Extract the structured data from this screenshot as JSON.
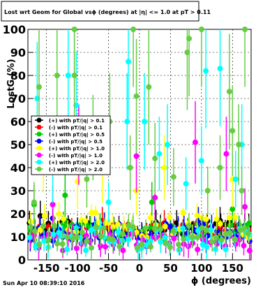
{
  "chart_data": {
    "type": "scatter",
    "title": "Lost wrt Geom for Global vsϕ (degrees) at |η| <= 1.0 at pT > 0.11",
    "xlabel": "ϕ (degrees)",
    "ylabel": "LostG (%)",
    "xlim": [
      -180,
      180
    ],
    "ylim": [
      0,
      100
    ],
    "xticks": [
      -150,
      -100,
      -50,
      0,
      50,
      100,
      150
    ],
    "yticks": [
      0,
      10,
      20,
      30,
      40,
      50,
      60,
      70,
      80,
      90,
      100
    ],
    "grid": true,
    "legend_position": "upper-left",
    "series": [
      {
        "name": "(+) with pT/|q| > 0.1",
        "color": "#000000",
        "base": 14,
        "spread": 3,
        "outliers": [
          [
            -160,
            19
          ],
          [
            130,
            17
          ],
          [
            60,
            16
          ]
        ]
      },
      {
        "name": "(-) with pT/|q| > 0.1",
        "color": "#ff0000",
        "base": 13,
        "spread": 3,
        "outliers": [
          [
            -60,
            17
          ],
          [
            40,
            16
          ]
        ]
      },
      {
        "name": "(+) with pT/|q| > 0.5",
        "color": "#00cc00",
        "base": 12,
        "spread": 4,
        "outliers": [
          [
            -170,
            24
          ],
          [
            -120,
            28
          ],
          [
            20,
            25
          ],
          [
            150,
            22
          ]
        ]
      },
      {
        "name": "(-) with pT/|q| > 0.5",
        "color": "#0000ff",
        "base": 12,
        "spread": 4,
        "outliers": [
          [
            -140,
            18
          ],
          [
            95,
            17
          ]
        ]
      },
      {
        "name": "(+) with pT/|q| > 1.0",
        "color": "#ffff00",
        "base": 15,
        "spread": 6,
        "outliers": [
          [
            -155,
            45
          ],
          [
            -100,
            34
          ],
          [
            -5,
            30
          ],
          [
            40,
            40
          ],
          [
            150,
            35
          ],
          [
            -60,
            38
          ],
          [
            110,
            30
          ]
        ]
      },
      {
        "name": "(-) with pT/|q| > 1.0",
        "color": "#ff00ff",
        "base": 8,
        "spread": 4,
        "outliers": [
          [
            -98,
            50
          ],
          [
            90,
            51
          ],
          [
            -5,
            45
          ],
          [
            140,
            46
          ],
          [
            25,
            27
          ],
          [
            -140,
            24
          ],
          [
            170,
            23
          ]
        ]
      },
      {
        "name": "(+) with pT/|q| > 2.0",
        "color": "#00ffff",
        "base": 9,
        "spread": 5,
        "outliers": [
          [
            -165,
            70
          ],
          [
            -115,
            80
          ],
          [
            -102,
            67
          ],
          [
            -18,
            86
          ],
          [
            -20,
            60
          ],
          [
            8,
            60
          ],
          [
            32,
            46
          ],
          [
            45,
            50
          ],
          [
            107,
            82
          ],
          [
            130,
            83
          ],
          [
            100,
            43
          ],
          [
            165,
            50
          ],
          [
            -50,
            25
          ],
          [
            -140,
            38
          ],
          [
            155,
            35
          ],
          [
            75,
            33
          ]
        ]
      },
      {
        "name": "(-) with pT/|q| > 2.0",
        "color": "#66cc44",
        "base": 10,
        "spread": 5,
        "outliers": [
          [
            -105,
            100
          ],
          [
            -10,
            100
          ],
          [
            100,
            100
          ],
          [
            170,
            100
          ],
          [
            -162,
            75
          ],
          [
            -133,
            80
          ],
          [
            -105,
            80
          ],
          [
            -48,
            60
          ],
          [
            -75,
            53
          ],
          [
            -5,
            71
          ],
          [
            15,
            75
          ],
          [
            77,
            90
          ],
          [
            80,
            96
          ],
          [
            145,
            73
          ],
          [
            150,
            56
          ],
          [
            160,
            50
          ],
          [
            -15,
            40
          ],
          [
            25,
            44
          ],
          [
            55,
            36
          ],
          [
            130,
            40
          ],
          [
            -170,
            25
          ],
          [
            -85,
            35
          ],
          [
            110,
            30
          ],
          [
            165,
            30
          ]
        ]
      }
    ]
  },
  "legend_entries": [
    "(+) with pT/|q| > 0.1",
    "(-) with pT/|q| > 0.1",
    "(+) with pT/|q| > 0.5",
    "(-) with pT/|q| > 0.5",
    "(+) with pT/|q| > 1.0",
    "(-) with pT/|q| > 1.0",
    "(+) with pT/|q| > 2.0",
    "(-) with pT/|q| > 2.0"
  ],
  "timestamp": "Sun Apr 10 08:39:10 2016"
}
